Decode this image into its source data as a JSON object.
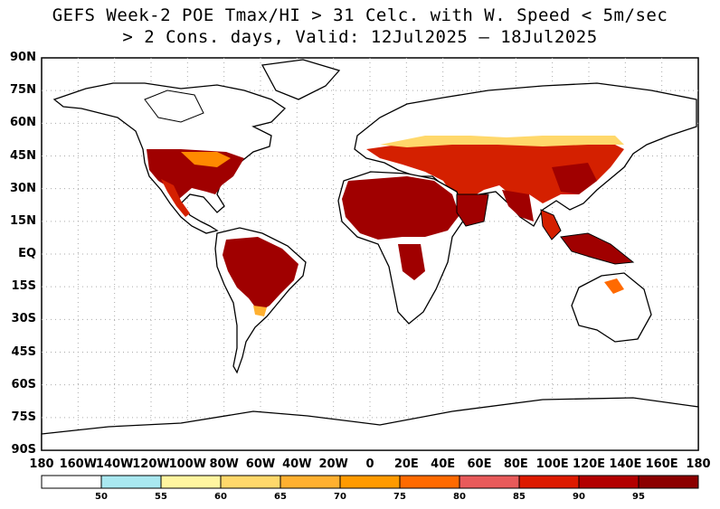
{
  "title": {
    "line1": "GEFS Week-2 POE Tmax/HI > 31 Celc. with W. Speed < 5m/sec",
    "line2": "> 2 Cons. days, Valid: 12Jul2025 – 18Jul2025"
  },
  "lat_labels": [
    "90N",
    "75N",
    "60N",
    "45N",
    "30N",
    "15N",
    "EQ",
    "15S",
    "30S",
    "45S",
    "60S",
    "75S",
    "90S"
  ],
  "lon_labels": [
    "180",
    "160W",
    "140W",
    "120W",
    "100W",
    "80W",
    "60W",
    "40W",
    "20W",
    "0",
    "20E",
    "40E",
    "60E",
    "80E",
    "100E",
    "120E",
    "140E",
    "160E",
    "180"
  ],
  "colorbar": {
    "labels": [
      "50",
      "55",
      "60",
      "65",
      "70",
      "75",
      "80",
      "85",
      "90",
      "95"
    ],
    "colors": [
      "#ffffff",
      "#a9e8f0",
      "#fff5a0",
      "#ffd86b",
      "#ffb030",
      "#ff9a00",
      "#ff6a00",
      "#e85a5a",
      "#dd1a00",
      "#b30000",
      "#8c0000"
    ]
  },
  "map_colors": {
    "land_outline": "#000000",
    "grid": "#999999",
    "hot": "#a00000",
    "warm": "#d42000",
    "mid": "#ff8a00",
    "light": "#ffd86b"
  }
}
